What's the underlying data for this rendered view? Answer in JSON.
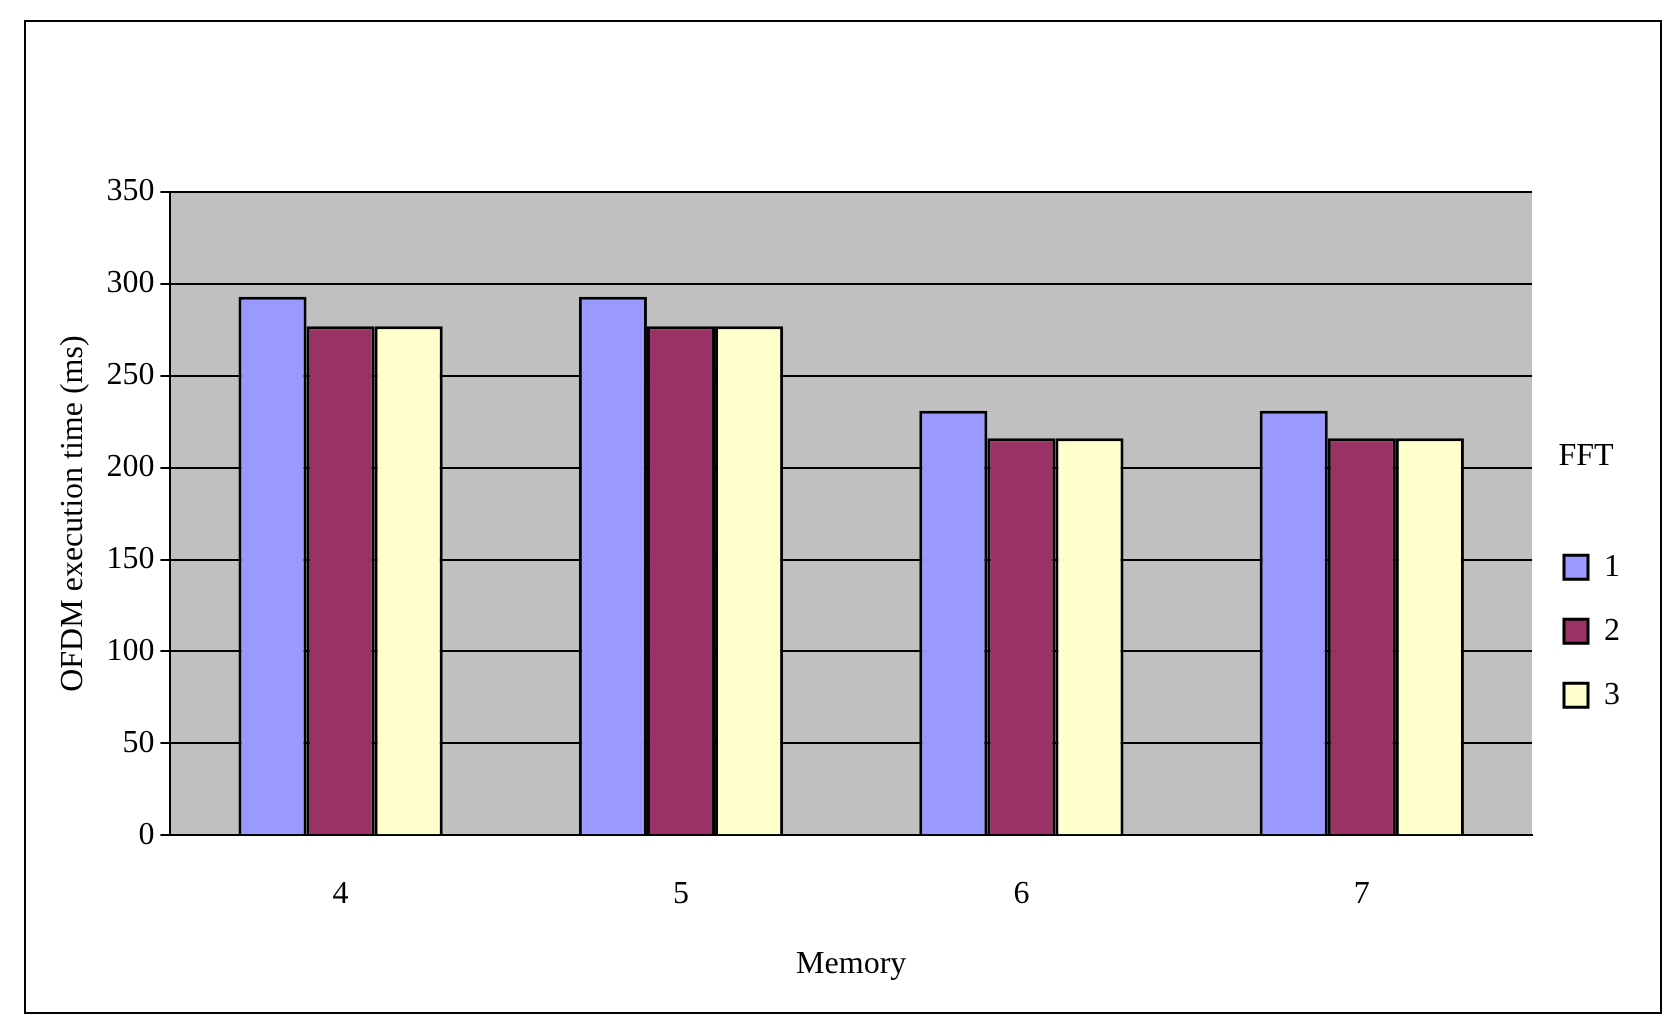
{
  "chart_data": {
    "type": "bar",
    "xlabel": "Memory",
    "ylabel": "OFDM execution time (ms)",
    "legend_title": "FFT",
    "categories": [
      "4",
      "5",
      "6",
      "7"
    ],
    "series": [
      {
        "name": "1",
        "color": "#9999ff",
        "values": [
          293,
          293,
          231,
          231
        ]
      },
      {
        "name": "2",
        "color": "#993366",
        "values": [
          277,
          277,
          216,
          216
        ]
      },
      {
        "name": "3",
        "color": "#ffffcc",
        "values": [
          277,
          277,
          216,
          216
        ]
      }
    ],
    "ylim": [
      0,
      350
    ],
    "yticks": [
      0,
      50,
      100,
      150,
      200,
      250,
      300,
      350
    ],
    "grid": "y",
    "legend": "right"
  }
}
